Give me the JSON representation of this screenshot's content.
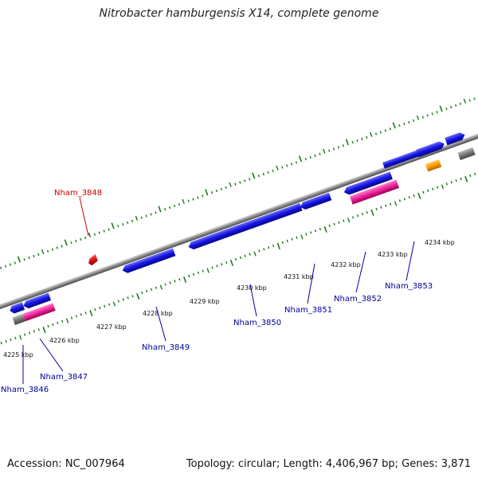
{
  "title": "Nitrobacter hamburgensis X14, complete genome",
  "footer": {
    "accession": "Accession: NC_007964",
    "summary": "Topology: circular; Length: 4,406,967 bp; Genes: 3,871"
  },
  "colors": {
    "backbone": "#8a8a8a",
    "tick": "#1a7a1a",
    "gene": "#1010dd",
    "rna": "#ee2299",
    "pseudo": "#777777",
    "orange": "#ff9900",
    "red": "#dd1111",
    "label_blue": "#000099",
    "label_red": "#cc0000"
  },
  "tick_labels": [
    "4225 kbp",
    "4226 kbp",
    "4227 kbp",
    "4228 kbp",
    "4229 kbp",
    "4230 kbp",
    "4231 kbp",
    "4232 kbp",
    "4233 kbp",
    "4234 kbp"
  ],
  "gene_labels": [
    "Nham_3846",
    "Nham_3847",
    "Nham_3848",
    "Nham_3849",
    "Nham_3850",
    "Nham_3851",
    "Nham_3852",
    "Nham_3853"
  ]
}
